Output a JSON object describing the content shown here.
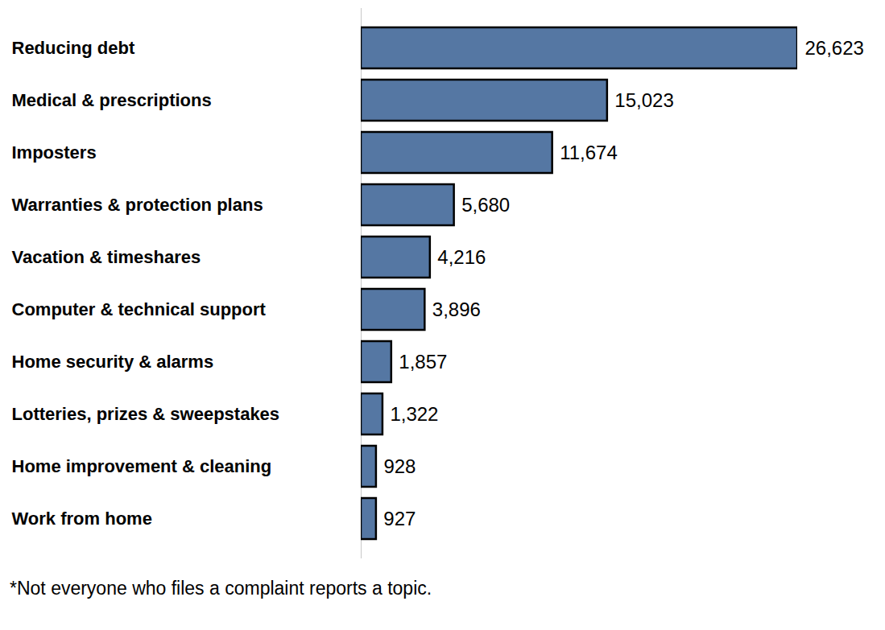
{
  "chart_data": {
    "type": "bar",
    "orientation": "horizontal",
    "caption": "*Not everyone who files a complaint reports a topic.",
    "categories": [
      "Reducing debt",
      "Medical & prescriptions",
      "Imposters",
      "Warranties & protection plans",
      "Vacation & timeshares",
      "Computer & technical support",
      "Home security & alarms",
      "Lotteries, prizes & sweepstakes",
      "Home improvement & cleaning",
      "Work from home"
    ],
    "values": [
      26623,
      15023,
      11674,
      5680,
      4216,
      3896,
      1857,
      1322,
      928,
      927
    ],
    "value_labels": [
      "26,623",
      "15,023",
      "11,674",
      "5,680",
      "4,216",
      "3,896",
      "1,857",
      "1,322",
      "928",
      "927"
    ],
    "color": "#5577a3",
    "xlim": [
      0,
      26623
    ],
    "data_labels": true,
    "tick_labels": "y"
  }
}
